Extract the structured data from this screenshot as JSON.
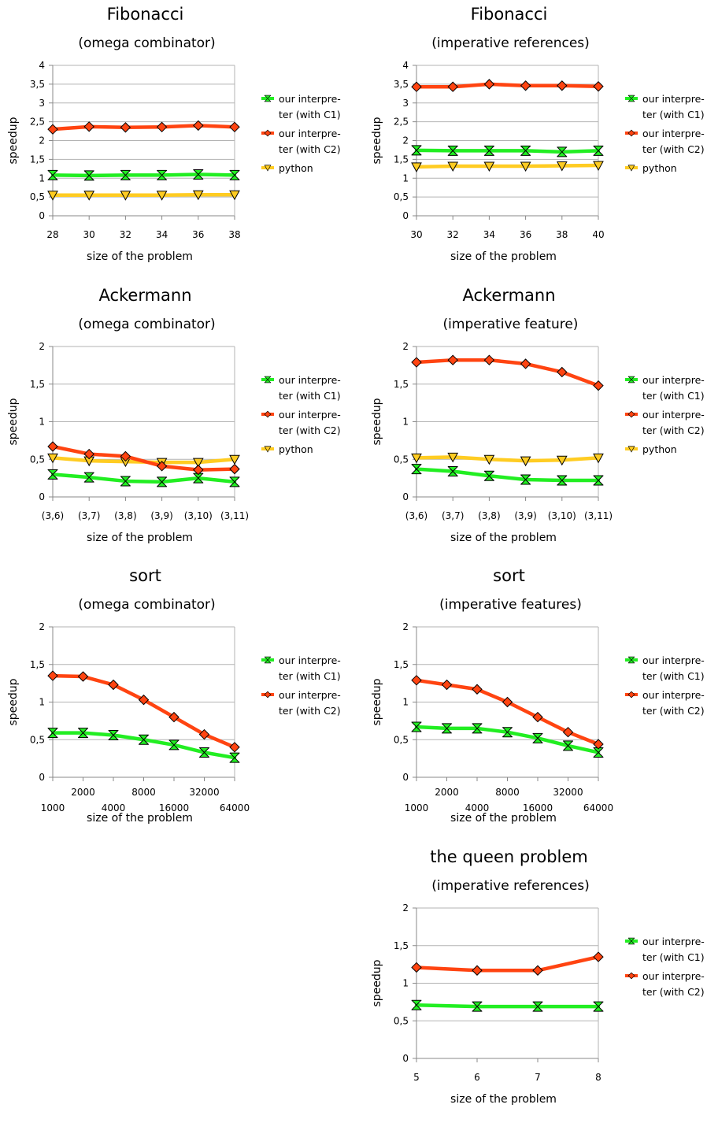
{
  "colors": {
    "c1": "#22EE22",
    "c2": "#FF4411",
    "python": "#FFCC22",
    "grid": "#B3B3B3",
    "axis": "#888888"
  },
  "chart_data": [
    {
      "type": "line",
      "title": "Fibonacci",
      "subtitle": "(omega combinator)",
      "xlabel": "size of the problem",
      "ylabel": "speedup",
      "categories": [
        "28",
        "30",
        "32",
        "34",
        "36",
        "38"
      ],
      "ylim": [
        0,
        4
      ],
      "yticks": [
        "0",
        "0,5",
        "1",
        "1,5",
        "2",
        "2,5",
        "3",
        "3,5",
        "4"
      ],
      "grid": true,
      "legend": "right",
      "series": [
        {
          "name": "our interpreter (with C1)",
          "legend_lines": [
            "our interpre-",
            "ter (with C1)"
          ],
          "color": "#22EE22",
          "marker": "hourglass",
          "values": [
            1.08,
            1.07,
            1.08,
            1.08,
            1.1,
            1.08
          ]
        },
        {
          "name": "our interpreter (with C2)",
          "legend_lines": [
            "our interpre-",
            "ter (with C2)"
          ],
          "color": "#FF4411",
          "marker": "diamond",
          "values": [
            2.3,
            2.37,
            2.35,
            2.36,
            2.4,
            2.36
          ]
        },
        {
          "name": "python",
          "legend_lines": [
            "python"
          ],
          "color": "#FFCC22",
          "marker": "triangle-down",
          "values": [
            0.55,
            0.55,
            0.55,
            0.55,
            0.56,
            0.56
          ]
        }
      ]
    },
    {
      "type": "line",
      "title": "Fibonacci",
      "subtitle": "(imperative references)",
      "xlabel": "size of the problem",
      "ylabel": "speedup",
      "categories": [
        "30",
        "32",
        "34",
        "36",
        "38",
        "40"
      ],
      "ylim": [
        0,
        4
      ],
      "yticks": [
        "0",
        "0,5",
        "1",
        "1,5",
        "2",
        "2,5",
        "3",
        "3,5",
        "4"
      ],
      "grid": true,
      "legend": "right",
      "series": [
        {
          "name": "our interpreter (with C1)",
          "legend_lines": [
            "our interpre-",
            "ter (with C1)"
          ],
          "color": "#22EE22",
          "marker": "hourglass",
          "values": [
            1.74,
            1.73,
            1.73,
            1.73,
            1.7,
            1.73
          ]
        },
        {
          "name": "our interpreter (with C2)",
          "legend_lines": [
            "our interpre-",
            "ter (with C2)"
          ],
          "color": "#FF4411",
          "marker": "diamond",
          "values": [
            3.43,
            3.43,
            3.5,
            3.46,
            3.46,
            3.44
          ]
        },
        {
          "name": "python",
          "legend_lines": [
            "python"
          ],
          "color": "#FFCC22",
          "marker": "triangle-down",
          "values": [
            1.3,
            1.32,
            1.32,
            1.32,
            1.33,
            1.34
          ]
        }
      ]
    },
    {
      "type": "line",
      "title": "Ackermann",
      "subtitle": "(omega combinator)",
      "xlabel": "size of the problem",
      "ylabel": "speedup",
      "categories": [
        "(3,6)",
        "(3,7)",
        "(3,8)",
        "(3,9)",
        "(3,10)",
        "(3,11)"
      ],
      "ylim": [
        0,
        2
      ],
      "yticks": [
        "0",
        "0,5",
        "1",
        "1,5",
        "2"
      ],
      "grid": true,
      "legend": "right",
      "series": [
        {
          "name": "our interpreter (with C1)",
          "legend_lines": [
            "our interpre-",
            "ter (with C1)"
          ],
          "color": "#22EE22",
          "marker": "hourglass",
          "values": [
            0.3,
            0.26,
            0.21,
            0.2,
            0.25,
            0.2
          ]
        },
        {
          "name": "our interpreter (with C2)",
          "legend_lines": [
            "our interpre-",
            "ter (with C2)"
          ],
          "color": "#FF4411",
          "marker": "diamond",
          "values": [
            0.67,
            0.57,
            0.54,
            0.41,
            0.36,
            0.37
          ]
        },
        {
          "name": "python",
          "legend_lines": [
            "python"
          ],
          "color": "#FFCC22",
          "marker": "triangle-down",
          "values": [
            0.52,
            0.48,
            0.47,
            0.46,
            0.46,
            0.5
          ]
        }
      ]
    },
    {
      "type": "line",
      "title": "Ackermann",
      "subtitle": "(imperative feature)",
      "xlabel": "size of the problem",
      "ylabel": "speedup",
      "categories": [
        "(3,6)",
        "(3,7)",
        "(3,8)",
        "(3,9)",
        "(3,10)",
        "(3,11)"
      ],
      "ylim": [
        0,
        2
      ],
      "yticks": [
        "0",
        "0,5",
        "1",
        "1,5",
        "2"
      ],
      "grid": true,
      "legend": "right",
      "series": [
        {
          "name": "our interpreter (with C1)",
          "legend_lines": [
            "our interpre-",
            "ter (with C1)"
          ],
          "color": "#22EE22",
          "marker": "hourglass",
          "values": [
            0.37,
            0.34,
            0.28,
            0.23,
            0.22,
            0.22
          ]
        },
        {
          "name": "our interpreter (with C2)",
          "legend_lines": [
            "our interpre-",
            "ter (with C2)"
          ],
          "color": "#FF4411",
          "marker": "diamond",
          "values": [
            1.79,
            1.82,
            1.82,
            1.77,
            1.66,
            1.48
          ]
        },
        {
          "name": "python",
          "legend_lines": [
            "python"
          ],
          "color": "#FFCC22",
          "marker": "triangle-down",
          "values": [
            0.52,
            0.53,
            0.5,
            0.48,
            0.49,
            0.52
          ]
        }
      ]
    },
    {
      "type": "line",
      "title": "sort",
      "subtitle": "(omega combinator)",
      "xlabel": "size of the problem",
      "ylabel": "speedup",
      "categories": [
        "1000",
        "2000",
        "4000",
        "8000",
        "16000",
        "32000",
        "64000"
      ],
      "ylim": [
        0,
        2
      ],
      "yticks": [
        "0",
        "0,5",
        "1",
        "1,5",
        "2"
      ],
      "grid": true,
      "legend": "right",
      "series": [
        {
          "name": "our interpreter (with C1)",
          "legend_lines": [
            "our interpre-",
            "ter (with C1)"
          ],
          "color": "#22EE22",
          "marker": "hourglass",
          "values": [
            0.59,
            0.59,
            0.56,
            0.5,
            0.43,
            0.33,
            0.26
          ]
        },
        {
          "name": "our interpreter (with C2)",
          "legend_lines": [
            "our interpre-",
            "ter (with C2)"
          ],
          "color": "#FF4411",
          "marker": "diamond",
          "values": [
            1.35,
            1.34,
            1.23,
            1.03,
            0.8,
            0.57,
            0.4
          ]
        }
      ]
    },
    {
      "type": "line",
      "title": "sort",
      "subtitle": "(imperative features)",
      "xlabel": "size of the problem",
      "ylabel": "speedup",
      "categories": [
        "1000",
        "2000",
        "4000",
        "8000",
        "16000",
        "32000",
        "64000"
      ],
      "ylim": [
        0,
        2
      ],
      "yticks": [
        "0",
        "0,5",
        "1",
        "1,5",
        "2"
      ],
      "grid": true,
      "legend": "right",
      "series": [
        {
          "name": "our interpreter (with C1)",
          "legend_lines": [
            "our interpre-",
            "ter (with C1)"
          ],
          "color": "#22EE22",
          "marker": "hourglass",
          "values": [
            0.67,
            0.65,
            0.65,
            0.6,
            0.52,
            0.42,
            0.33
          ]
        },
        {
          "name": "our interpreter (with C2)",
          "legend_lines": [
            "our interpre-",
            "ter (with C2)"
          ],
          "color": "#FF4411",
          "marker": "diamond",
          "values": [
            1.29,
            1.23,
            1.17,
            1.0,
            0.8,
            0.6,
            0.44
          ]
        }
      ]
    },
    {
      "type": "line",
      "title": "the queen problem",
      "subtitle": "(imperative references)",
      "xlabel": "size of the problem",
      "ylabel": "speedup",
      "categories": [
        "5",
        "6",
        "7",
        "8"
      ],
      "ylim": [
        0,
        2
      ],
      "yticks": [
        "0",
        "0,5",
        "1",
        "1,5",
        "2"
      ],
      "grid": true,
      "legend": "right",
      "series": [
        {
          "name": "our interpreter (with C1)",
          "legend_lines": [
            "our interpre-",
            "ter (with C1)"
          ],
          "color": "#22EE22",
          "marker": "hourglass",
          "values": [
            0.71,
            0.69,
            0.69,
            0.69
          ]
        },
        {
          "name": "our interpreter (with C2)",
          "legend_lines": [
            "our interpre-",
            "ter (with C2)"
          ],
          "color": "#FF4411",
          "marker": "diamond",
          "values": [
            1.21,
            1.17,
            1.17,
            1.35
          ]
        }
      ]
    }
  ]
}
